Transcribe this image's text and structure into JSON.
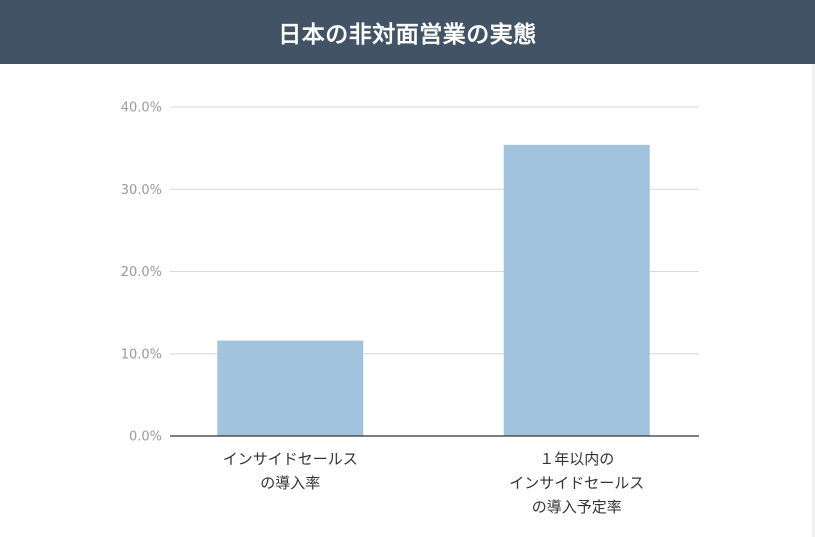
{
  "header": {
    "title": "日本の非対面営業の実態"
  },
  "colors": {
    "header_bg": "#435366",
    "bar": "#a2c3de",
    "grid": "#d9d9d9",
    "axis": "#333333"
  },
  "chart_data": {
    "type": "bar",
    "title": "",
    "xlabel": "",
    "ylabel": "",
    "ylim": [
      0,
      40
    ],
    "yticks": [
      0,
      10,
      20,
      30,
      40
    ],
    "ytick_labels": [
      "0.0%",
      "10.0%",
      "20.0%",
      "30.0%",
      "40.0%"
    ],
    "grid": true,
    "categories": [
      [
        "インサイドセールス",
        "の導入率"
      ],
      [
        "１年以内の",
        "インサイドセールス",
        "の導入予定率"
      ]
    ],
    "values": [
      11.6,
      35.4
    ]
  }
}
